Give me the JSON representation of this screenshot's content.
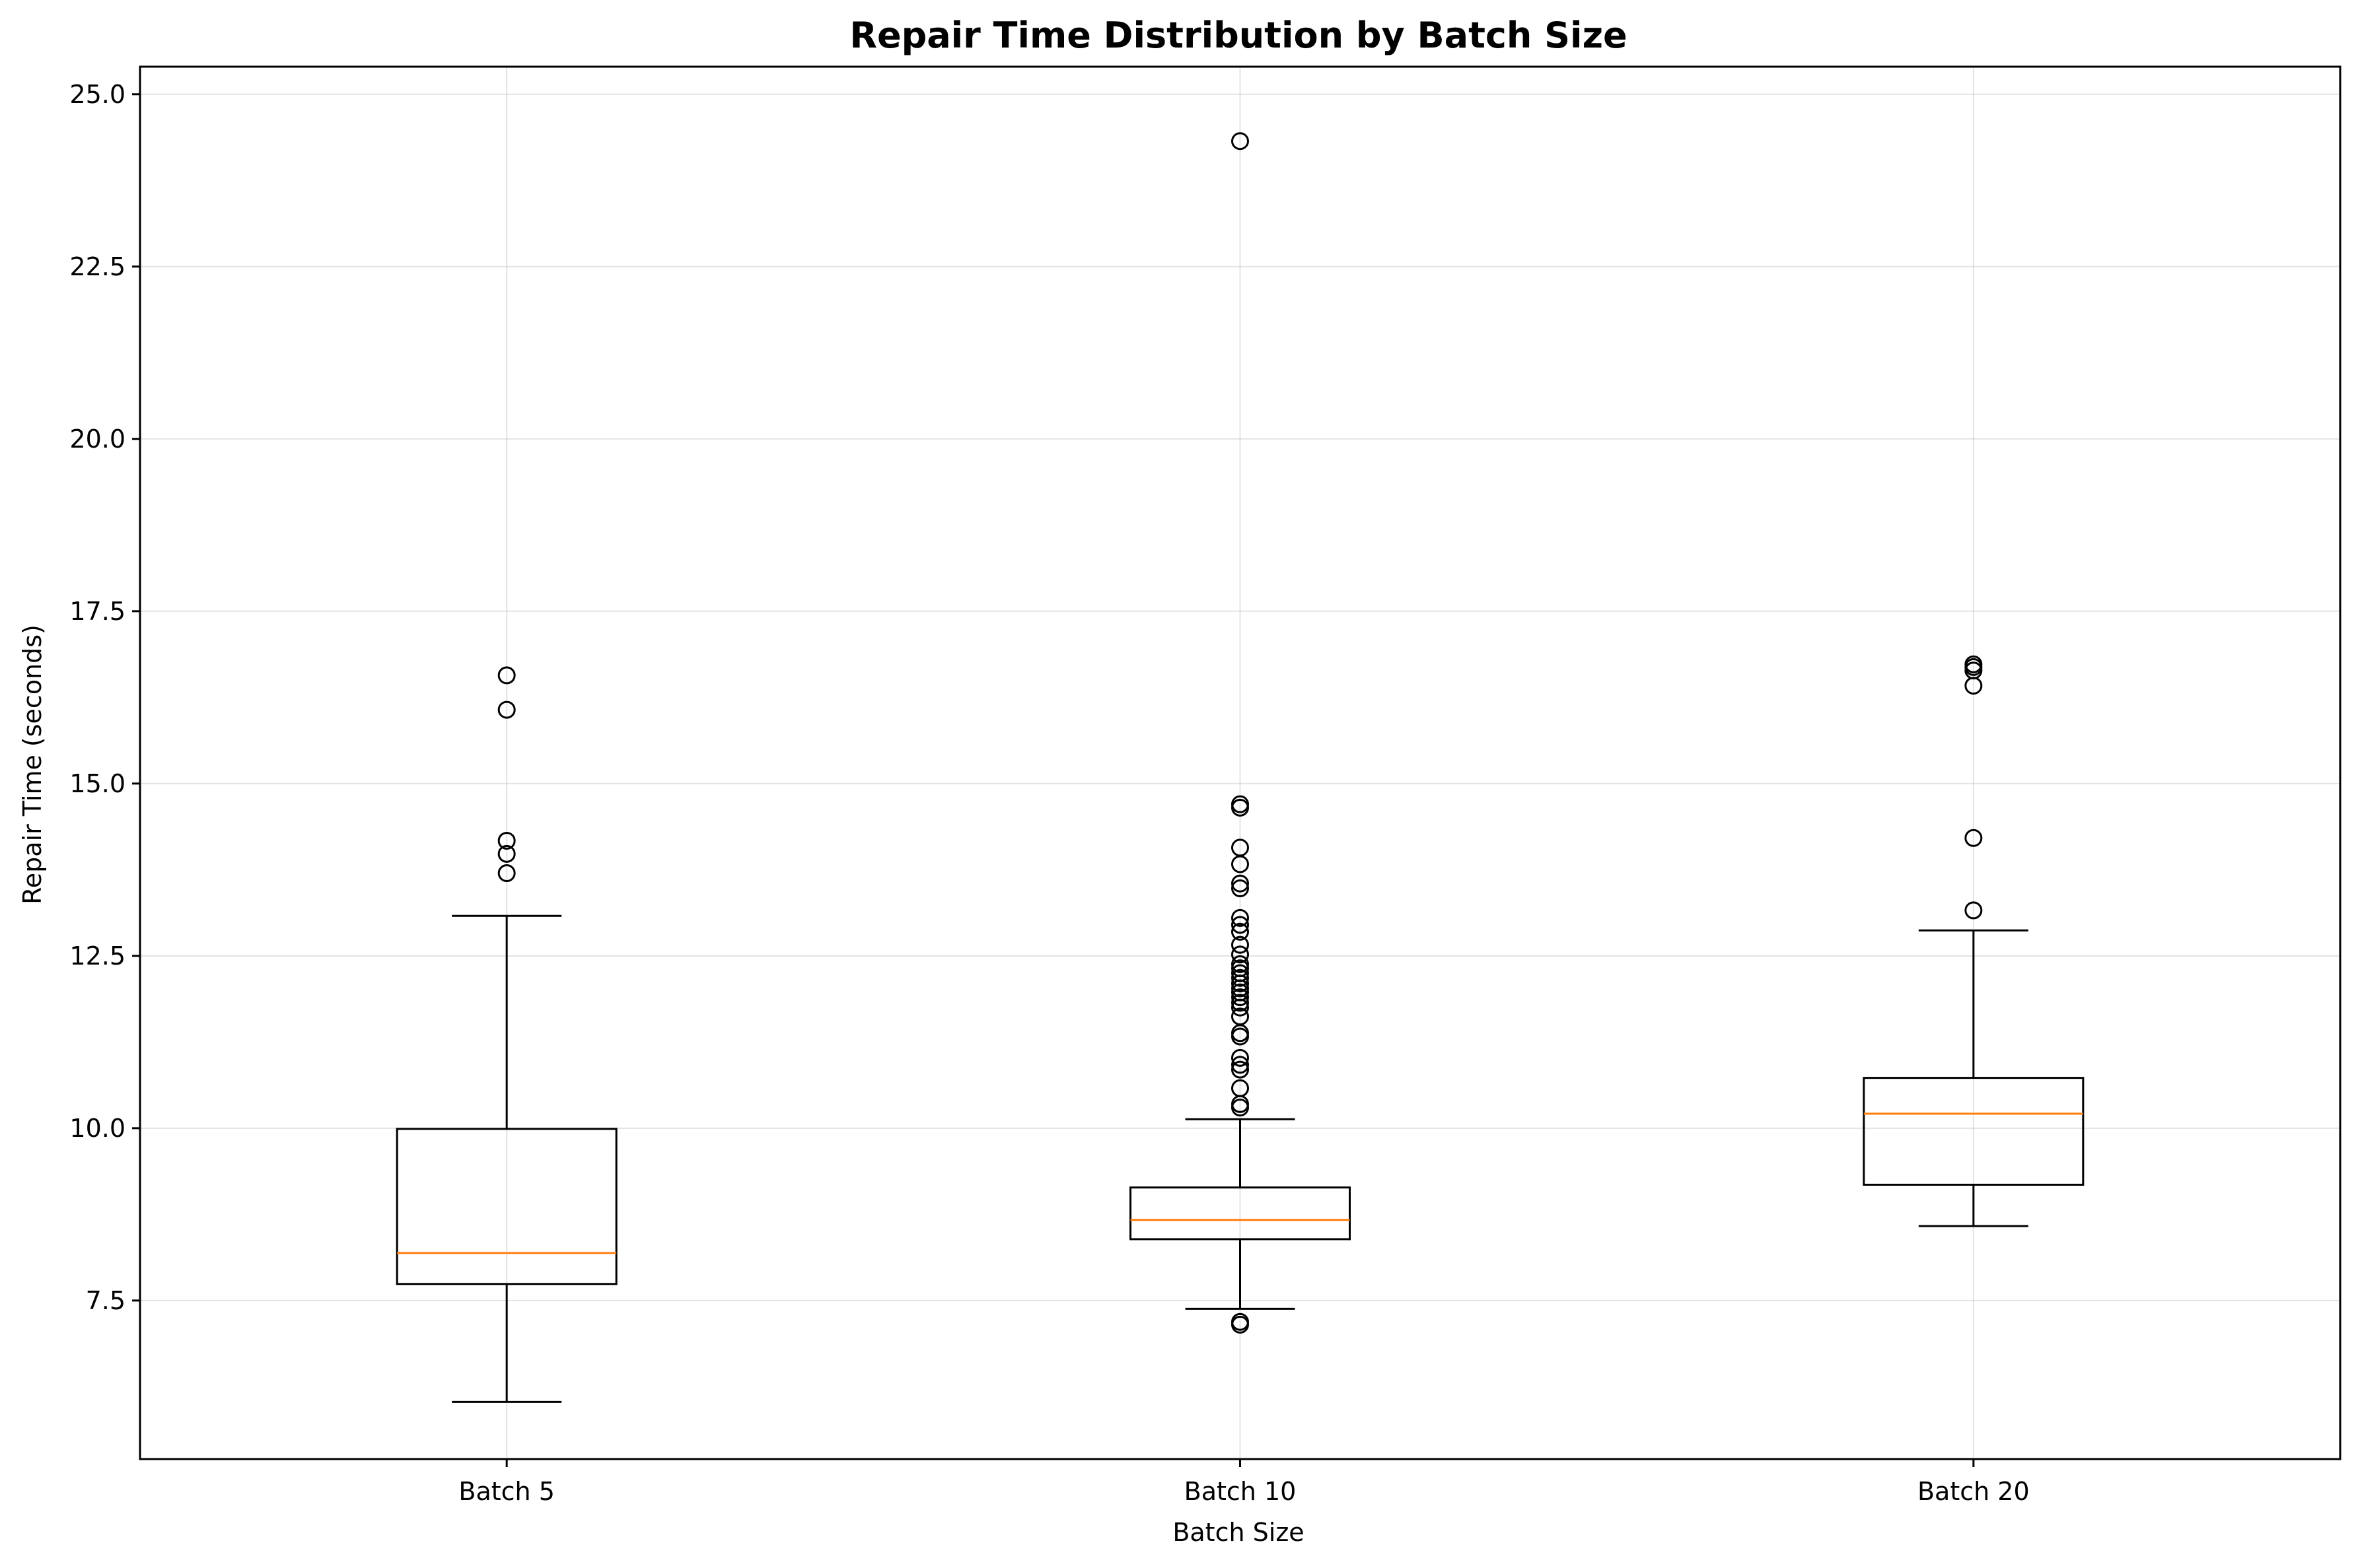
{
  "chart_data": {
    "type": "box",
    "title": "Repair Time Distribution by Batch Size",
    "xlabel": "Batch Size",
    "ylabel": "Repair Time (seconds)",
    "categories": [
      "Batch 5",
      "Batch 10",
      "Batch 20"
    ],
    "ylim": [
      5.2,
      25.4
    ],
    "yticks": [
      7.5,
      10.0,
      12.5,
      15.0,
      17.5,
      20.0,
      22.5,
      25.0
    ],
    "ytick_labels": [
      "7.5",
      "10.0",
      "12.5",
      "15.0",
      "17.5",
      "20.0",
      "22.5",
      "25.0"
    ],
    "grid": true,
    "median_color": "#ff7f0e",
    "boxes": [
      {
        "label": "Batch 5",
        "whislo": 6.03,
        "q1": 7.74,
        "median": 8.19,
        "q3": 9.99,
        "whishi": 13.08,
        "fliers": [
          13.7,
          13.98,
          14.17,
          16.07,
          16.57
        ]
      },
      {
        "label": "Batch 10",
        "whislo": 7.38,
        "q1": 8.39,
        "median": 8.67,
        "q3": 9.14,
        "whishi": 10.13,
        "fliers": [
          7.15,
          7.19,
          10.3,
          10.35,
          10.58,
          10.85,
          10.92,
          11.02,
          11.33,
          11.38,
          11.62,
          11.75,
          11.82,
          11.9,
          11.97,
          12.03,
          12.1,
          12.18,
          12.25,
          12.32,
          12.38,
          12.52,
          12.66,
          12.85,
          12.95,
          13.05,
          13.48,
          13.55,
          13.83,
          14.07,
          14.65,
          14.7,
          24.32
        ]
      },
      {
        "label": "Batch 20",
        "whislo": 8.58,
        "q1": 9.18,
        "median": 10.21,
        "q3": 10.73,
        "whishi": 12.87,
        "fliers": [
          13.16,
          14.21,
          16.42,
          16.64,
          16.69,
          16.73
        ]
      }
    ]
  }
}
